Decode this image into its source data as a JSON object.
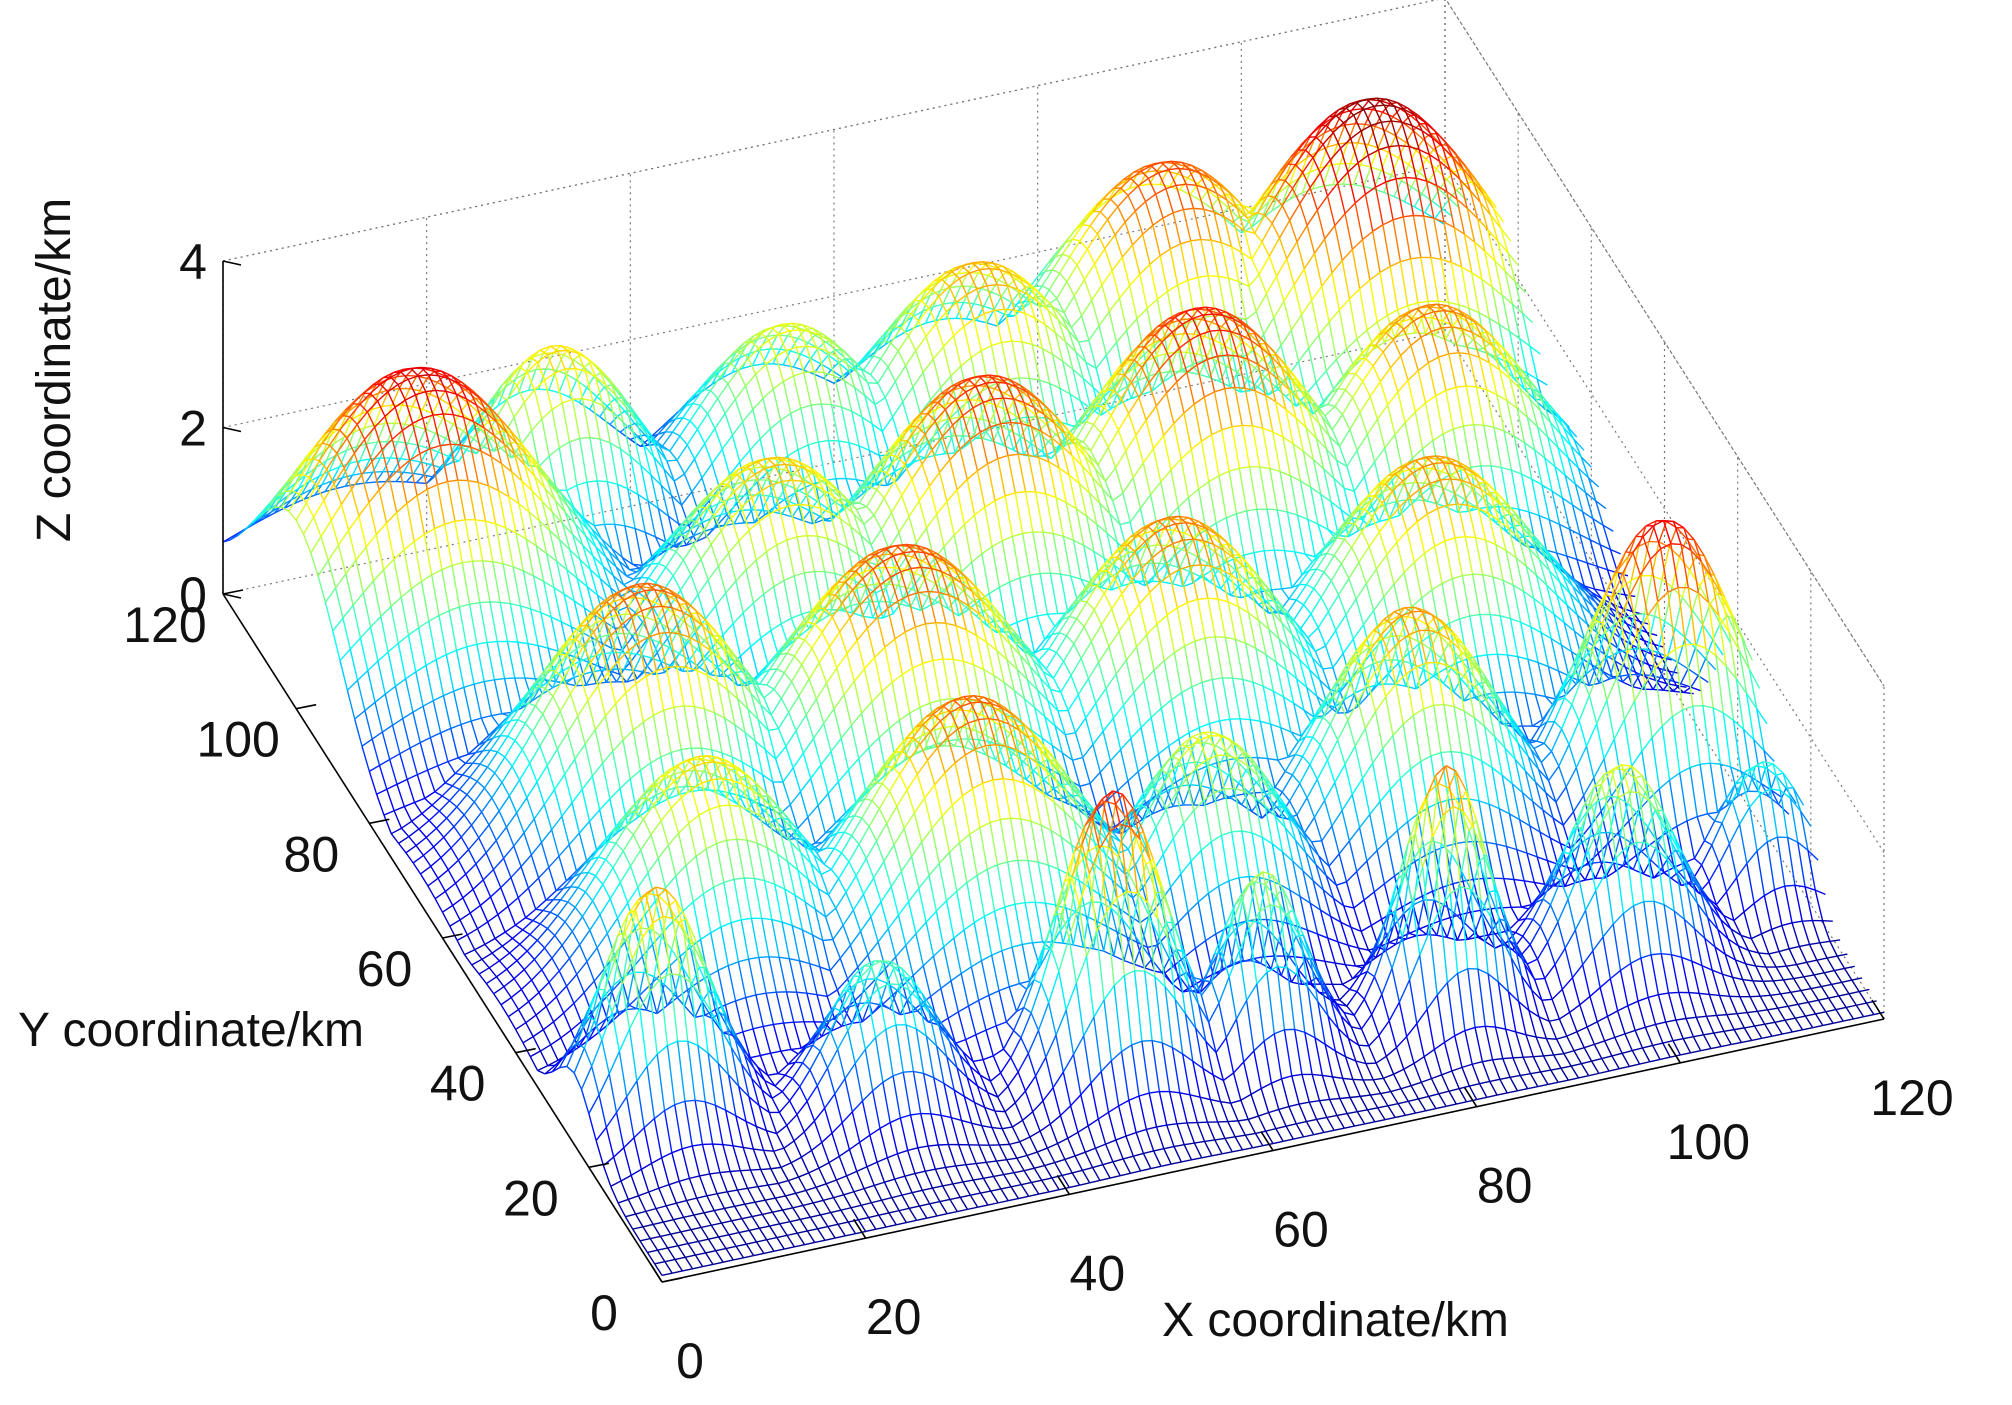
{
  "chart_data": {
    "type": "surface",
    "subtype": "3d-mesh",
    "title": "",
    "xlabel": "X coordinate/km",
    "ylabel": "Y coordinate/km",
    "zlabel": "Z coordinate/km",
    "xlim": [
      0,
      120
    ],
    "ylim": [
      0,
      120
    ],
    "zlim": [
      0,
      4
    ],
    "x_ticks": [
      0,
      20,
      40,
      60,
      80,
      100,
      120
    ],
    "y_ticks": [
      0,
      20,
      40,
      60,
      80,
      100,
      120
    ],
    "z_ticks": [
      0,
      2,
      4
    ],
    "colormap": "jet",
    "grid": true,
    "peaks": [
      {
        "x": 12,
        "y": 100,
        "z": 3.6,
        "spread": 12
      },
      {
        "x": 30,
        "y": 112,
        "z": 2.6,
        "spread": 8
      },
      {
        "x": 52,
        "y": 110,
        "z": 2.4,
        "spread": 9
      },
      {
        "x": 70,
        "y": 108,
        "z": 2.8,
        "spread": 10
      },
      {
        "x": 90,
        "y": 112,
        "z": 3.2,
        "spread": 11
      },
      {
        "x": 108,
        "y": 106,
        "z": 3.9,
        "spread": 12
      },
      {
        "x": 42,
        "y": 86,
        "z": 2.7,
        "spread": 10
      },
      {
        "x": 62,
        "y": 84,
        "z": 3.3,
        "spread": 11
      },
      {
        "x": 84,
        "y": 86,
        "z": 3.4,
        "spread": 11
      },
      {
        "x": 106,
        "y": 84,
        "z": 3.0,
        "spread": 10
      },
      {
        "x": 22,
        "y": 66,
        "z": 3.1,
        "spread": 10
      },
      {
        "x": 46,
        "y": 62,
        "z": 3.2,
        "spread": 11
      },
      {
        "x": 72,
        "y": 60,
        "z": 3.0,
        "spread": 10
      },
      {
        "x": 98,
        "y": 62,
        "z": 2.9,
        "spread": 10
      },
      {
        "x": 20,
        "y": 44,
        "z": 2.6,
        "spread": 9
      },
      {
        "x": 44,
        "y": 38,
        "z": 3.1,
        "spread": 10
      },
      {
        "x": 66,
        "y": 34,
        "z": 2.4,
        "spread": 7
      },
      {
        "x": 88,
        "y": 40,
        "z": 2.9,
        "spread": 8
      },
      {
        "x": 112,
        "y": 38,
        "z": 3.5,
        "spread": 7
      },
      {
        "x": 8,
        "y": 24,
        "z": 2.8,
        "spread": 5
      },
      {
        "x": 28,
        "y": 18,
        "z": 1.8,
        "spread": 5
      },
      {
        "x": 50,
        "y": 16,
        "z": 3.4,
        "spread": 5
      },
      {
        "x": 64,
        "y": 14,
        "z": 2.2,
        "spread": 4
      },
      {
        "x": 82,
        "y": 14,
        "z": 3.0,
        "spread": 4
      },
      {
        "x": 100,
        "y": 16,
        "z": 2.4,
        "spread": 5
      },
      {
        "x": 116,
        "y": 22,
        "z": 1.6,
        "spread": 4
      }
    ]
  }
}
